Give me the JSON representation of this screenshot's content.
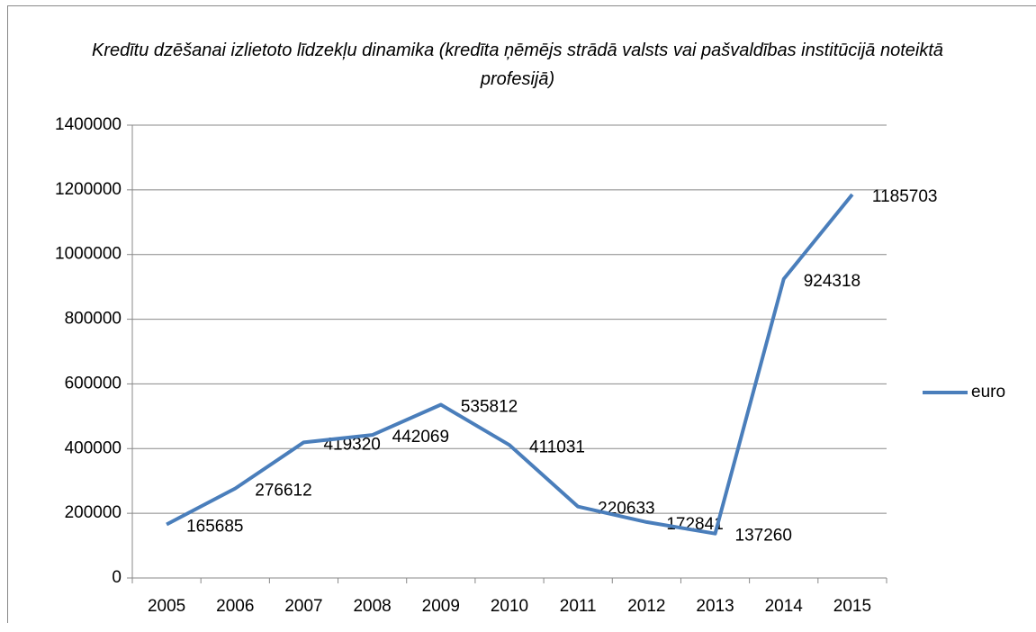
{
  "chart_data": {
    "type": "line",
    "title": "Kredītu dzēšanai izlietoto līdzekļu dinamika (kredīta ņēmējs strādā valsts vai pašvaldības institūcijā noteiktā profesijā)",
    "categories": [
      "2005",
      "2006",
      "2007",
      "2008",
      "2009",
      "2010",
      "2011",
      "2012",
      "2013",
      "2014",
      "2015"
    ],
    "series": [
      {
        "name": "euro",
        "color": "#4a7ebb",
        "values": [
          165685,
          276612,
          419320,
          442069,
          535812,
          411031,
          220633,
          172841,
          137260,
          924318,
          1185703
        ]
      }
    ],
    "ylim": [
      0,
      1400000
    ],
    "yticks": [
      0,
      200000,
      400000,
      600000,
      800000,
      1000000,
      1200000,
      1400000
    ],
    "grid": true,
    "legend": "right"
  }
}
